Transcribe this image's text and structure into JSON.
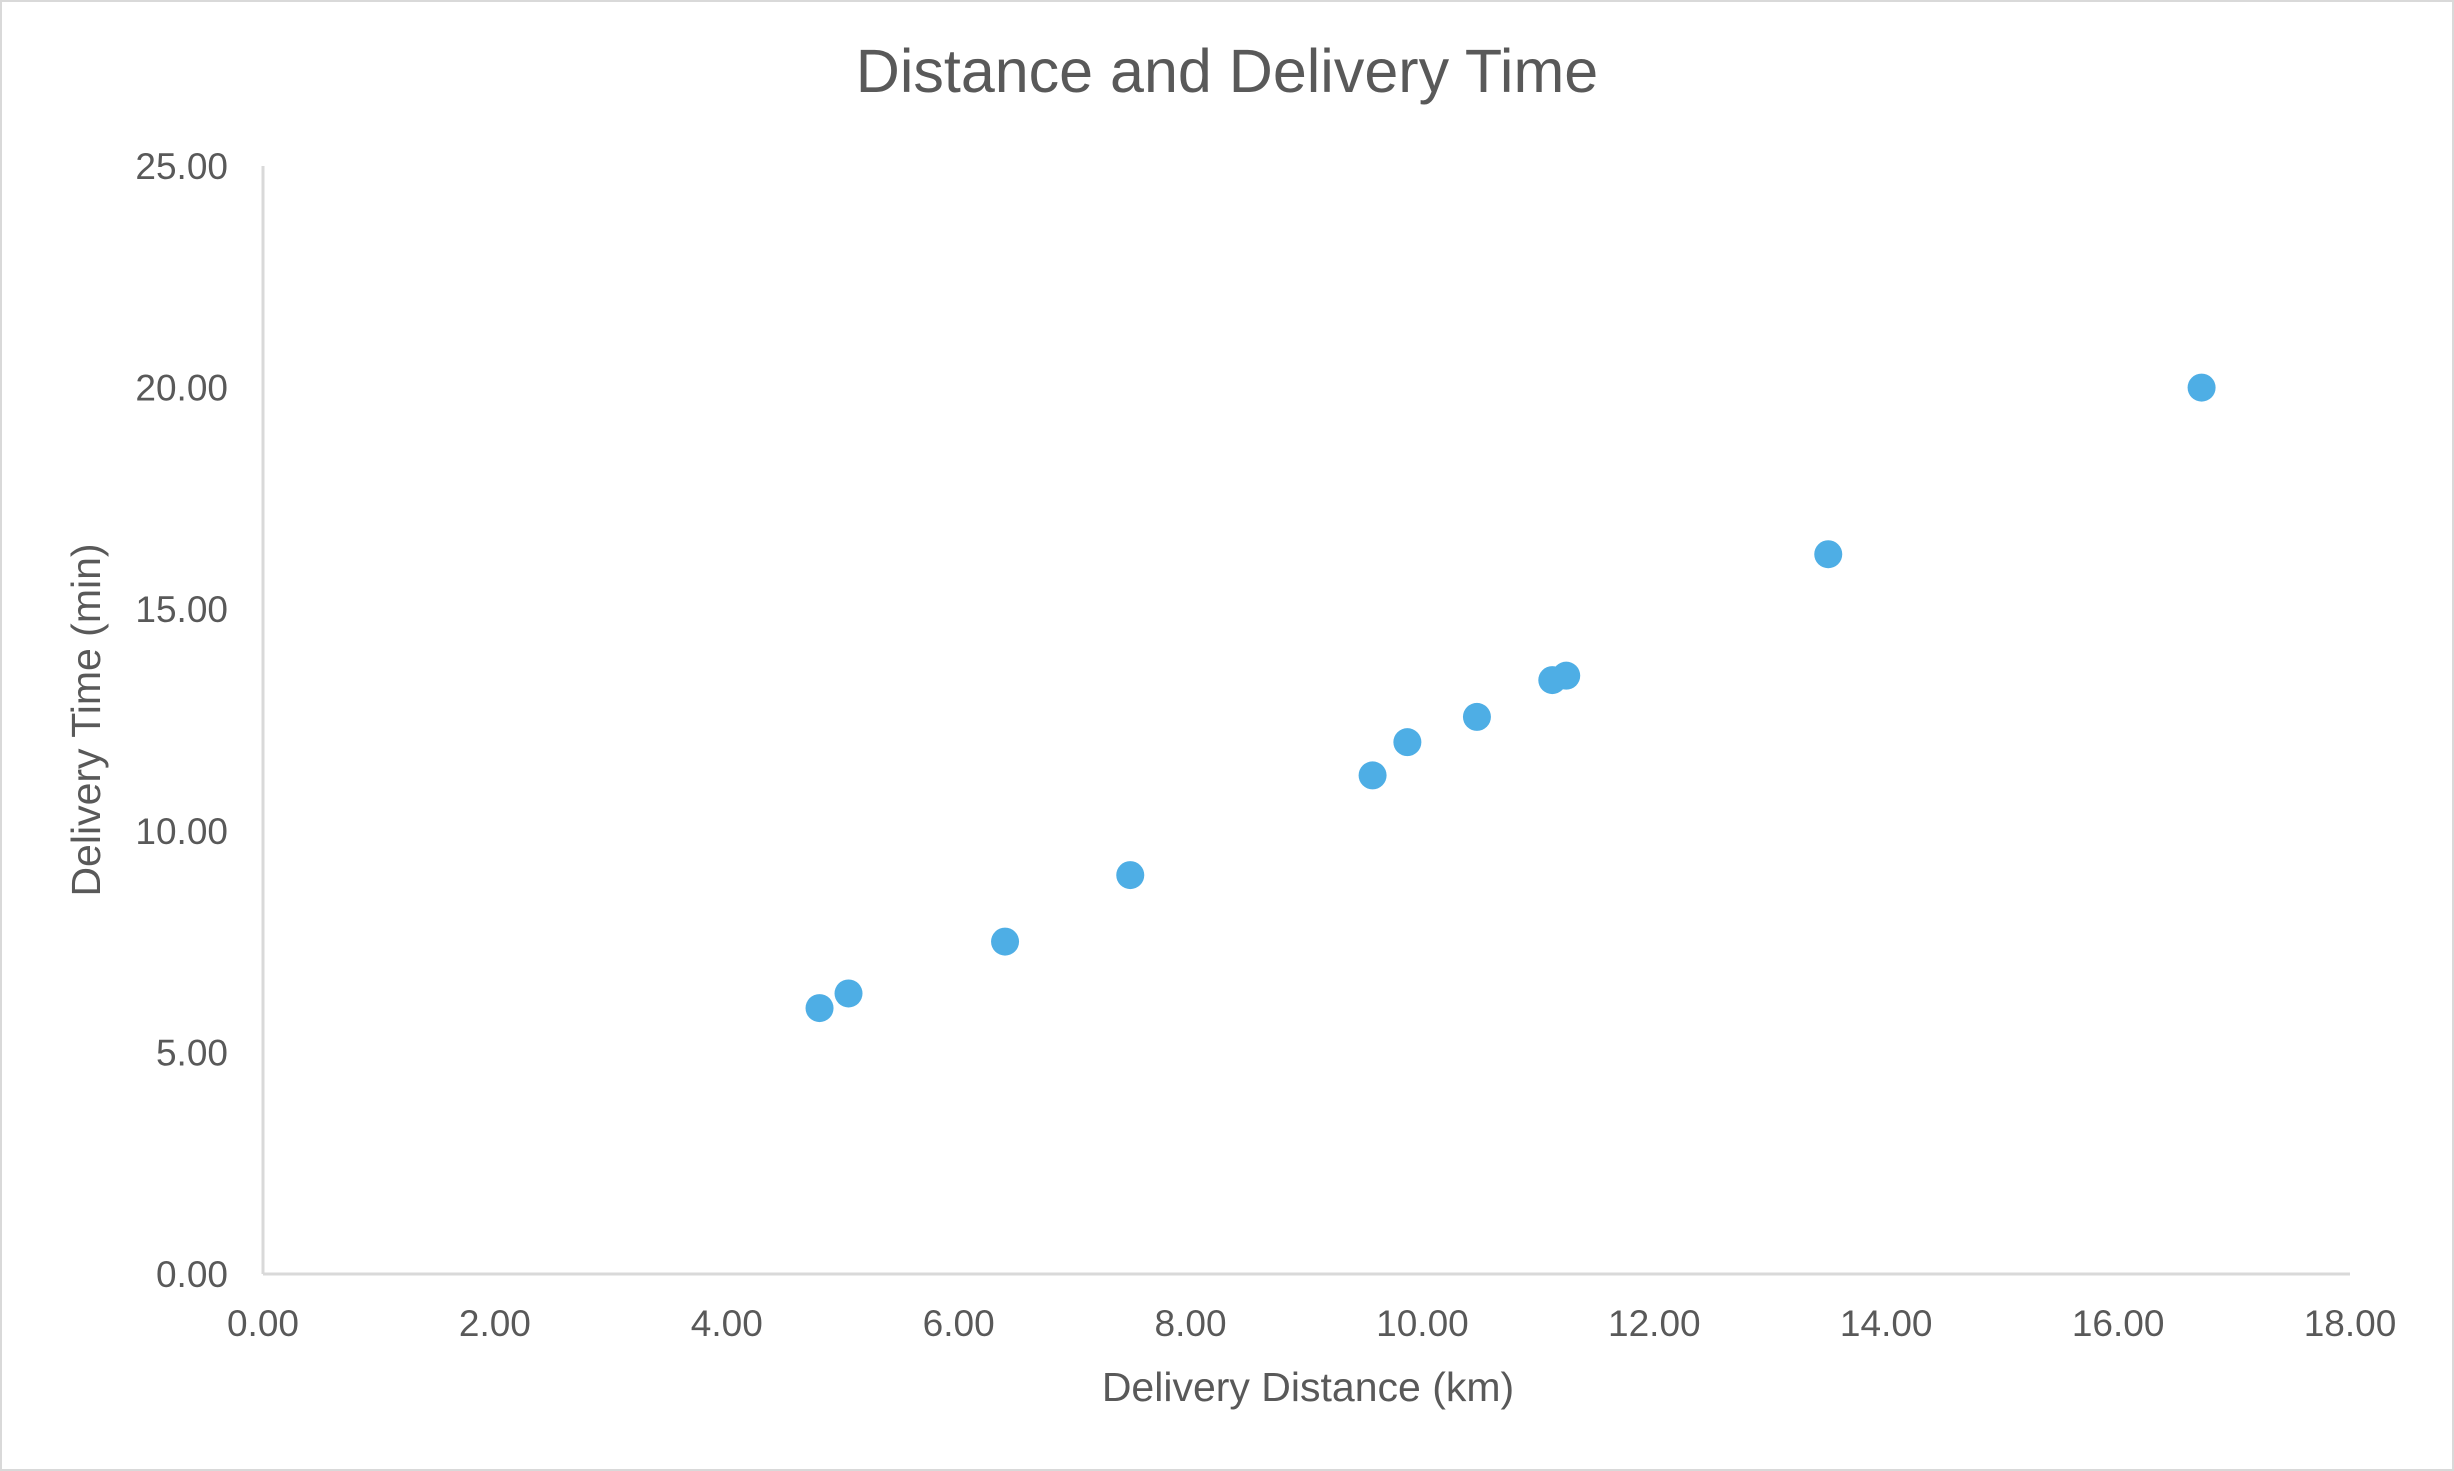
{
  "chart_data": {
    "type": "scatter",
    "title": "Distance and Delivery Time",
    "xlabel": "Delivery Distance (km)",
    "ylabel": "Delivery Time (min)",
    "xlim": [
      0,
      18
    ],
    "ylim": [
      0,
      25
    ],
    "xticks": [
      "0.00",
      "2.00",
      "4.00",
      "6.00",
      "8.00",
      "10.00",
      "12.00",
      "14.00",
      "16.00",
      "18.00"
    ],
    "yticks": [
      "0.00",
      "5.00",
      "10.00",
      "15.00",
      "20.00",
      "25.00"
    ],
    "grid": false,
    "legend": "none",
    "marker_color": "#4EAEE5",
    "series": [
      {
        "name": "Delivery Time",
        "x": [
          4.8,
          5.05,
          6.4,
          7.48,
          9.57,
          9.87,
          10.47,
          11.12,
          11.24,
          13.5,
          16.72
        ],
        "y": [
          6.0,
          6.33,
          7.5,
          9.0,
          11.25,
          12.0,
          12.57,
          13.4,
          13.5,
          16.24,
          20.0
        ]
      }
    ]
  }
}
